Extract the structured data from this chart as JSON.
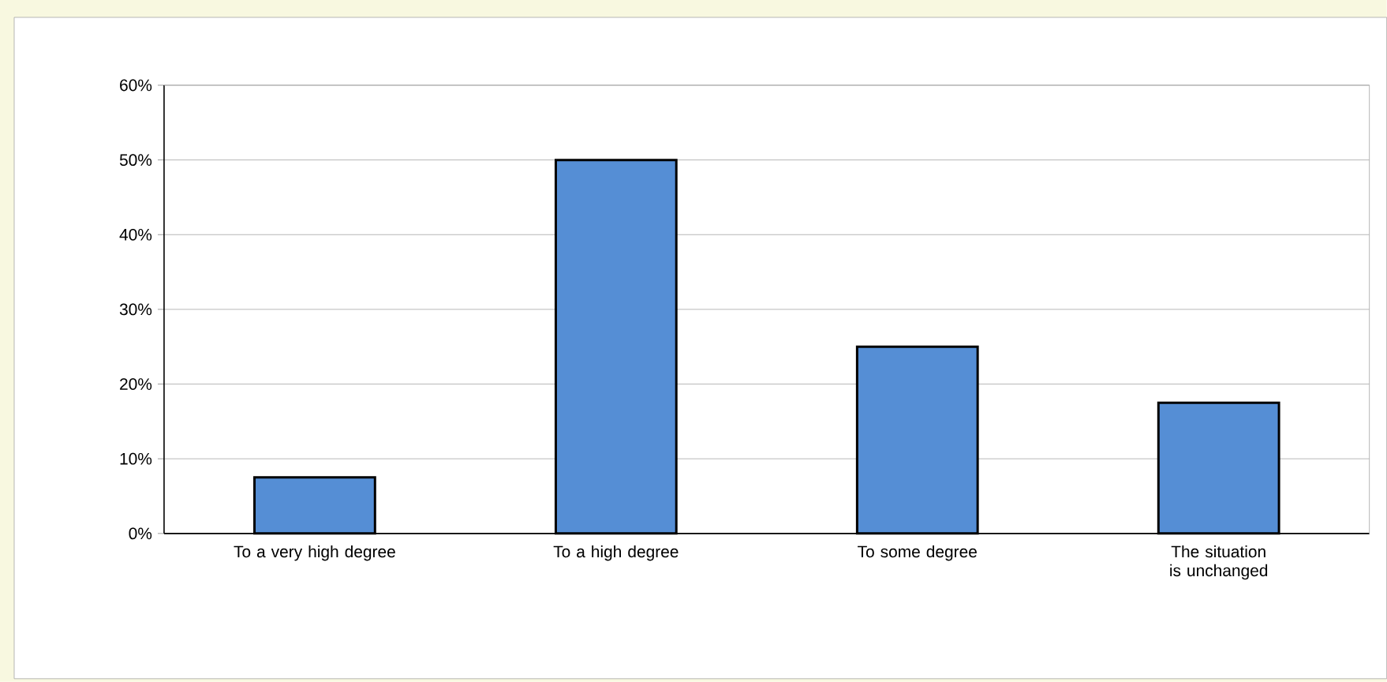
{
  "chart_data": {
    "type": "bar",
    "categories": [
      "To a very high degree",
      "To a high degree",
      "To some degree",
      "The situation is unchanged"
    ],
    "values": [
      7.5,
      50,
      25,
      17.5
    ],
    "color": "#558ed5",
    "ylim": [
      0,
      60
    ],
    "yticks": [
      {
        "value": 0,
        "label": "0%"
      },
      {
        "value": 10,
        "label": "10%"
      },
      {
        "value": 20,
        "label": "20%"
      },
      {
        "value": 30,
        "label": "30%"
      },
      {
        "value": 40,
        "label": "40%"
      },
      {
        "value": 50,
        "label": "50%"
      },
      {
        "value": 60,
        "label": "60%"
      }
    ],
    "grid": "y"
  }
}
